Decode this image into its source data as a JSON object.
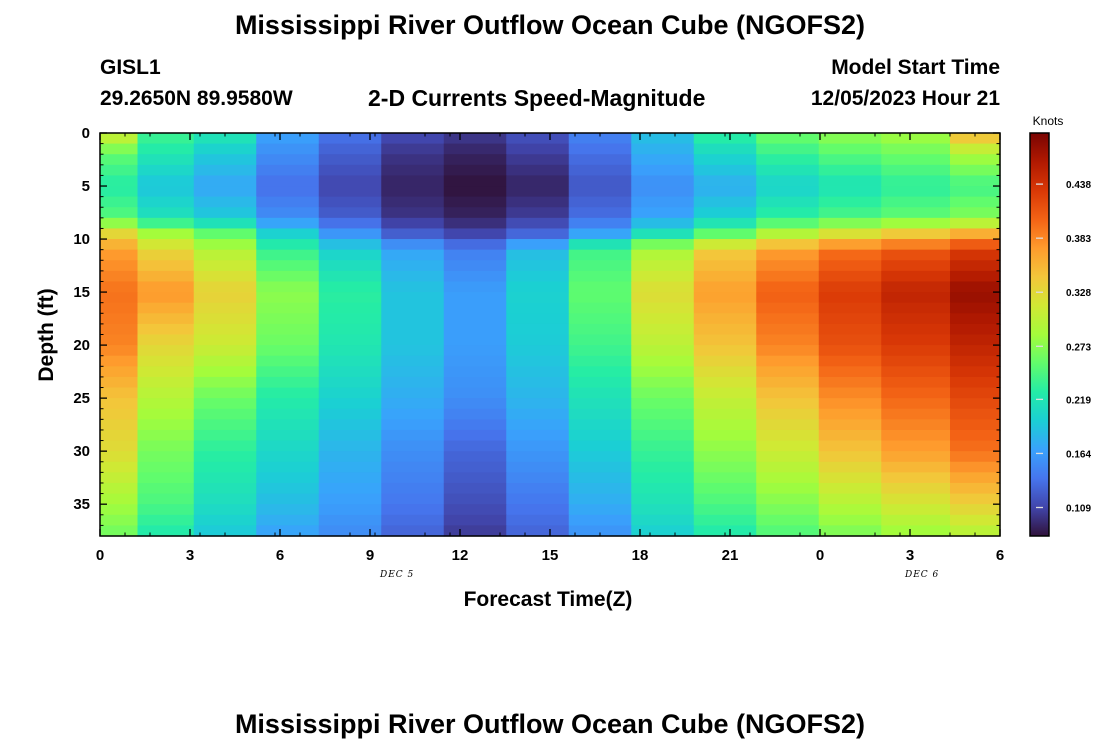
{
  "page": {
    "title_top": "Mississippi River Outflow Ocean Cube (NGOFS2)",
    "title_bottom": "Mississippi River Outflow Ocean Cube (NGOFS2)",
    "station_id": "GISL1",
    "station_coords": "29.2650N  89.9580W",
    "model_start_label": "Model Start Time",
    "model_start_value": "12/05/2023 Hour 21"
  },
  "chart_data": {
    "type": "heatmap",
    "title": "2-D Currents Speed-Magnitude",
    "xlabel": "Forecast Time(Z)",
    "ylabel": "Depth (ft)",
    "x_tick_labels": [
      "0",
      "3",
      "6",
      "9",
      "12",
      "15",
      "18",
      "21",
      "0",
      "3",
      "6"
    ],
    "x_range_hours": [
      0,
      36
    ],
    "date_labels": [
      {
        "text": "DEC 5",
        "hour": 12
      },
      {
        "text": "DEC 6",
        "hour": 33
      }
    ],
    "y_tick_labels": [
      "0",
      "5",
      "10",
      "15",
      "20",
      "25",
      "30",
      "35"
    ],
    "y_range_ft": [
      0,
      38
    ],
    "colorbar": {
      "unit": "Knots",
      "range": [
        0.08,
        0.49
      ],
      "tick_labels": [
        "0.438",
        "0.383",
        "0.328",
        "0.273",
        "0.219",
        "0.164",
        "0.109"
      ],
      "colors": [
        "#30123b",
        "#4145ab",
        "#4675ed",
        "#39a2fc",
        "#1bcfd4",
        "#24eca6",
        "#61fc6c",
        "#a4fc3b",
        "#d1e834",
        "#f3c63a",
        "#fe9b2d",
        "#f36315",
        "#d93806",
        "#b11901",
        "#7a0402"
      ]
    },
    "time_columns_hours": [
      0.5,
      2.5,
      5,
      7.5,
      10,
      12.5,
      15,
      17.5,
      20,
      22.5,
      25,
      27.5,
      30,
      32.5,
      35.5
    ],
    "depth_rows": [
      {
        "depth_ft": 0.5,
        "values": [
          0.3,
          0.235,
          0.215,
          0.165,
          0.135,
          0.11,
          0.1,
          0.115,
          0.145,
          0.185,
          0.225,
          0.255,
          0.27,
          0.28,
          0.34
        ]
      },
      {
        "depth_ft": 2,
        "values": [
          0.255,
          0.22,
          0.195,
          0.155,
          0.125,
          0.1,
          0.09,
          0.105,
          0.135,
          0.175,
          0.205,
          0.235,
          0.25,
          0.26,
          0.29
        ]
      },
      {
        "depth_ft": 5,
        "values": [
          0.225,
          0.19,
          0.17,
          0.135,
          0.11,
          0.09,
          0.08,
          0.09,
          0.12,
          0.155,
          0.175,
          0.2,
          0.215,
          0.23,
          0.24
        ]
      },
      {
        "depth_ft": 8,
        "values": [
          0.25,
          0.215,
          0.195,
          0.155,
          0.125,
          0.1,
          0.09,
          0.105,
          0.135,
          0.17,
          0.2,
          0.23,
          0.245,
          0.255,
          0.27
        ]
      },
      {
        "depth_ft": 9.5,
        "values": [
          0.33,
          0.285,
          0.255,
          0.2,
          0.16,
          0.125,
          0.11,
          0.13,
          0.17,
          0.215,
          0.255,
          0.295,
          0.32,
          0.34,
          0.36
        ]
      },
      {
        "depth_ft": 11,
        "values": [
          0.37,
          0.33,
          0.295,
          0.235,
          0.2,
          0.17,
          0.145,
          0.185,
          0.24,
          0.29,
          0.34,
          0.37,
          0.395,
          0.41,
          0.43
        ]
      },
      {
        "depth_ft": 15,
        "values": [
          0.395,
          0.375,
          0.335,
          0.275,
          0.23,
          0.19,
          0.165,
          0.2,
          0.255,
          0.325,
          0.37,
          0.405,
          0.43,
          0.45,
          0.475
        ]
      },
      {
        "depth_ft": 20,
        "values": [
          0.385,
          0.33,
          0.31,
          0.26,
          0.22,
          0.19,
          0.165,
          0.195,
          0.24,
          0.3,
          0.345,
          0.385,
          0.415,
          0.43,
          0.45
        ]
      },
      {
        "depth_ft": 25,
        "values": [
          0.345,
          0.295,
          0.26,
          0.225,
          0.2,
          0.175,
          0.155,
          0.18,
          0.215,
          0.26,
          0.305,
          0.345,
          0.38,
          0.4,
          0.42
        ]
      },
      {
        "depth_ft": 30,
        "values": [
          0.325,
          0.265,
          0.23,
          0.205,
          0.18,
          0.155,
          0.13,
          0.16,
          0.195,
          0.235,
          0.275,
          0.31,
          0.345,
          0.37,
          0.395
        ]
      },
      {
        "depth_ft": 35,
        "values": [
          0.285,
          0.245,
          0.21,
          0.185,
          0.165,
          0.14,
          0.115,
          0.14,
          0.175,
          0.215,
          0.245,
          0.27,
          0.295,
          0.315,
          0.335
        ]
      },
      {
        "depth_ft": 37.5,
        "values": [
          0.265,
          0.225,
          0.195,
          0.17,
          0.155,
          0.13,
          0.105,
          0.13,
          0.16,
          0.2,
          0.225,
          0.25,
          0.27,
          0.285,
          0.3
        ]
      }
    ]
  }
}
